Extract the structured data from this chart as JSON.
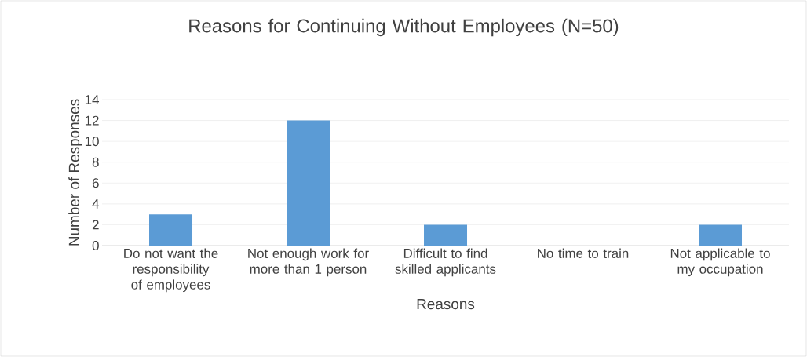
{
  "chart_data": {
    "type": "bar",
    "title": "Reasons for Continuing Without Employees (N=50)",
    "xlabel": "Reasons",
    "ylabel": "Number of Responses",
    "categories": [
      "Do not want the responsibility of employees",
      "Not enough work for more than 1 person",
      "Difficult to find skilled applicants",
      "No time to train",
      "Not applicable to my occupation"
    ],
    "values": [
      3,
      12,
      2,
      0,
      2
    ],
    "color": "#5b9bd5",
    "ylim": [
      0,
      14
    ],
    "yticks": [
      0,
      2,
      4,
      6,
      8,
      10,
      12,
      14
    ],
    "grid": "y"
  }
}
